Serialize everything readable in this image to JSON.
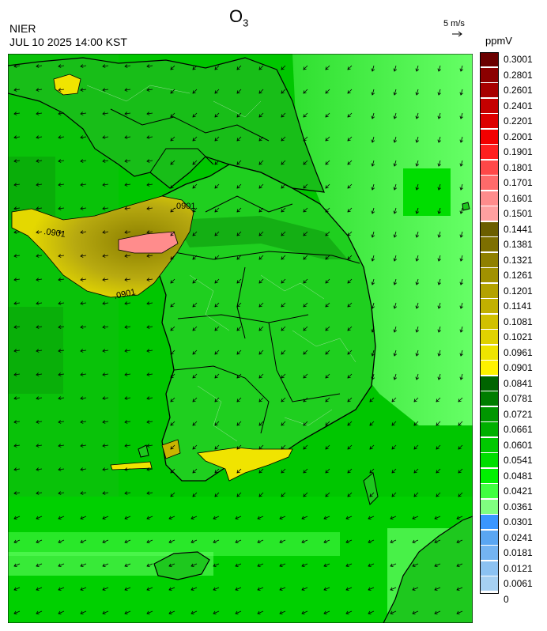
{
  "header": {
    "title_main": "O",
    "title_sub": "3",
    "agency": "NIER",
    "timestamp": "JUL 10 2025 14:00 KST",
    "wind_reference": "5 m/s",
    "unit": "ppmV"
  },
  "contour_labels": [
    ".0901",
    ".0901",
    ".0901"
  ],
  "legend": [
    {
      "value": "0.3001",
      "color": "#6b0000"
    },
    {
      "value": "0.2801",
      "color": "#8b0000"
    },
    {
      "value": "0.2601",
      "color": "#a80000"
    },
    {
      "value": "0.2401",
      "color": "#c40000"
    },
    {
      "value": "0.2201",
      "color": "#dd0000"
    },
    {
      "value": "0.2001",
      "color": "#f20000"
    },
    {
      "value": "0.1901",
      "color": "#ff2020"
    },
    {
      "value": "0.1801",
      "color": "#ff4848"
    },
    {
      "value": "0.1701",
      "color": "#ff6a6a"
    },
    {
      "value": "0.1601",
      "color": "#ff8c8c"
    },
    {
      "value": "0.1501",
      "color": "#ffa0a0"
    },
    {
      "value": "0.1441",
      "color": "#6b5e00"
    },
    {
      "value": "0.1381",
      "color": "#7d6f00"
    },
    {
      "value": "0.1321",
      "color": "#8f8000"
    },
    {
      "value": "0.1261",
      "color": "#a19100"
    },
    {
      "value": "0.1201",
      "color": "#b3a200"
    },
    {
      "value": "0.1141",
      "color": "#c2b000"
    },
    {
      "value": "0.1081",
      "color": "#d1c000"
    },
    {
      "value": "0.1021",
      "color": "#e0d200"
    },
    {
      "value": "0.0961",
      "color": "#efe400"
    },
    {
      "value": "0.0901",
      "color": "#fff200"
    },
    {
      "value": "0.0841",
      "color": "#006400"
    },
    {
      "value": "0.0781",
      "color": "#007d00"
    },
    {
      "value": "0.0721",
      "color": "#009600"
    },
    {
      "value": "0.0661",
      "color": "#00b000"
    },
    {
      "value": "0.0601",
      "color": "#00c800"
    },
    {
      "value": "0.0541",
      "color": "#00de00"
    },
    {
      "value": "0.0481",
      "color": "#00f000"
    },
    {
      "value": "0.0421",
      "color": "#40ff40"
    },
    {
      "value": "0.0361",
      "color": "#80ff80"
    },
    {
      "value": "0.0301",
      "color": "#3a96ff"
    },
    {
      "value": "0.0241",
      "color": "#5aa6f2"
    },
    {
      "value": "0.0181",
      "color": "#74b4f2"
    },
    {
      "value": "0.0121",
      "color": "#8cc2f2"
    },
    {
      "value": "0.0061",
      "color": "#a6d0f2"
    },
    {
      "value": "0",
      "color": ""
    }
  ],
  "colors": {
    "ocean_green": "#00d400",
    "land_green": "#1ec81e",
    "east_sea_light": "#66ff66",
    "dark_green": "#0c8a0c",
    "contour_yellow": "#e0d400",
    "plume_olive": "#a89a10",
    "plume_pink": "#ff8c8c",
    "coast_line": "#000000",
    "blue_patch": "#3a96ff"
  }
}
